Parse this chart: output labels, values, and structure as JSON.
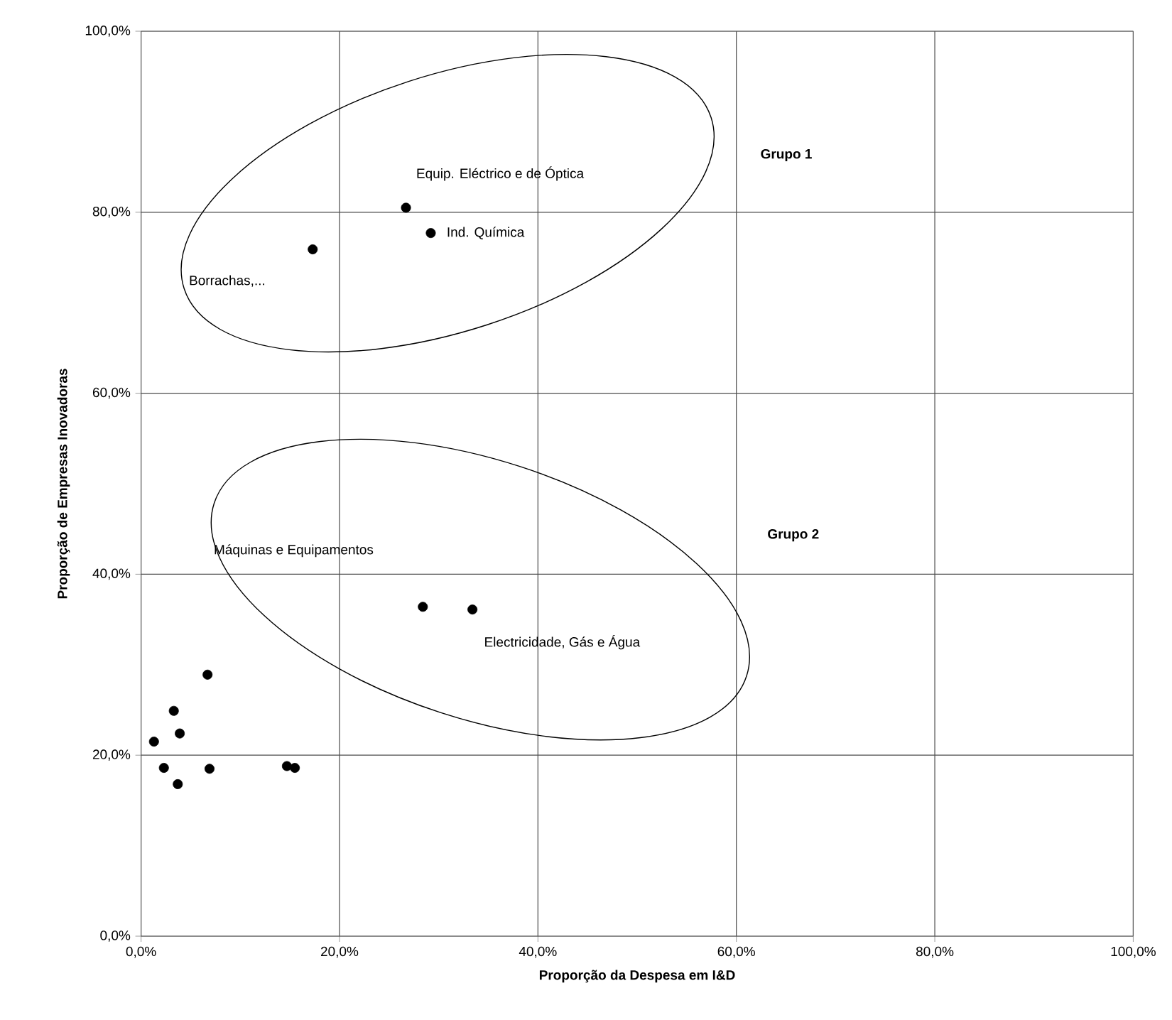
{
  "chart_data": {
    "type": "scatter",
    "xlabel": "Proporção da Despesa em I&D",
    "ylabel": "Proporção de Empresas Inovadoras",
    "series": [
      {
        "color": "#000000",
        "x": [
          17.3,
          26.7,
          29.2,
          28.4,
          33.4,
          6.7,
          3.3,
          3.9,
          1.3,
          2.3,
          3.7,
          6.9,
          14.7,
          15.5
        ],
        "values": [
          75.9,
          80.5,
          77.7,
          36.4,
          36.1,
          28.9,
          24.9,
          22.4,
          21.5,
          18.6,
          16.8,
          18.5,
          18.8,
          18.6
        ]
      }
    ],
    "xlim": [
      0,
      100
    ],
    "ylim": [
      0,
      100
    ],
    "xticks": [
      {
        "value": 0,
        "label": "0,0%"
      },
      {
        "value": 20,
        "label": "20,0%"
      },
      {
        "value": 40,
        "label": "40,0%"
      },
      {
        "value": 60,
        "label": "60,0%"
      },
      {
        "value": 80,
        "label": "80,0%"
      },
      {
        "value": 100,
        "label": "100,0%"
      }
    ],
    "yticks": [
      {
        "value": 0,
        "label": "0,0%"
      },
      {
        "value": 20,
        "label": "20,0%"
      },
      {
        "value": 40,
        "label": "40,0%"
      },
      {
        "value": 60,
        "label": "60,0%"
      },
      {
        "value": 80,
        "label": "80,0%"
      },
      {
        "value": 100,
        "label": "100,0%"
      }
    ],
    "grid": true,
    "marker": "circle",
    "annotations": [
      "Borrachas,...",
      {
        "text": "Equip. Eléctrico e de Óptica",
        "x": 26.7,
        "y": 80.5
      },
      {
        "text": "Ind. Química",
        "x": 29.2,
        "y": 77.7
      },
      "Máquinas e Equipamentos",
      {
        "text": "Electricidade, Gás e Água",
        "x": 33.4,
        "y": 36.1
      },
      "Grupo 1",
      "Grupo 2"
    ]
  }
}
